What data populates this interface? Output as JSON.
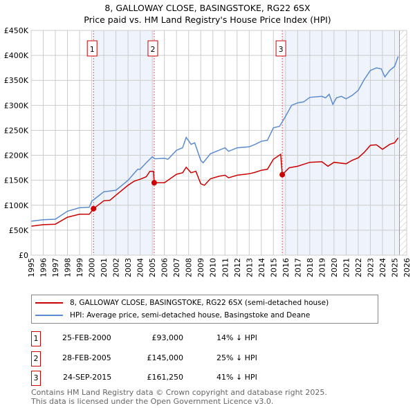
{
  "chart_data": {
    "type": "line",
    "title": "8, GALLOWAY CLOSE, BASINGSTOKE, RG22 6SX",
    "subtitle": "Price paid vs. HM Land Registry's House Price Index (HPI)",
    "xlim": [
      1995,
      2026
    ],
    "ylim": [
      0,
      450000
    ],
    "y_ticks": [
      {
        "v": 0,
        "label": "£0"
      },
      {
        "v": 50000,
        "label": "£50K"
      },
      {
        "v": 100000,
        "label": "£100K"
      },
      {
        "v": 150000,
        "label": "£150K"
      },
      {
        "v": 200000,
        "label": "£200K"
      },
      {
        "v": 250000,
        "label": "£250K"
      },
      {
        "v": 300000,
        "label": "£300K"
      },
      {
        "v": 350000,
        "label": "£350K"
      },
      {
        "v": 400000,
        "label": "£400K"
      },
      {
        "v": 450000,
        "label": "£450K"
      }
    ],
    "x_ticks": [
      "1995",
      "1996",
      "1997",
      "1998",
      "1999",
      "2000",
      "2001",
      "2002",
      "2003",
      "2004",
      "2005",
      "2006",
      "2007",
      "2008",
      "2009",
      "2010",
      "2011",
      "2012",
      "2013",
      "2014",
      "2015",
      "2016",
      "2017",
      "2018",
      "2019",
      "2020",
      "2021",
      "2022",
      "2023",
      "2024",
      "2025",
      "2026"
    ],
    "grid": true,
    "forecast_start": 2025.4,
    "series": [
      {
        "name": "8, GALLOWAY CLOSE, BASINGSTOKE, RG22 6SX (semi-detached house)",
        "color": "#cc0000",
        "x": [
          1995,
          1996,
          1997,
          1998,
          1999,
          1999.8,
          2000.15,
          2001,
          2001.5,
          2002,
          2003,
          2003.5,
          2004,
          2004.5,
          2004.8,
          2005.1,
          2005.16,
          2006,
          2007,
          2007.5,
          2007.8,
          2008.2,
          2008.6,
          2009,
          2009.3,
          2009.8,
          2010.5,
          2011,
          2011.3,
          2012,
          2013,
          2013.5,
          2014,
          2014.5,
          2015,
          2015.6,
          2015.73,
          2016.3,
          2017,
          2018,
          2019,
          2019.5,
          2020,
          2021,
          2021.5,
          2022,
          2022.5,
          2023,
          2023.5,
          2024,
          2024.6,
          2025,
          2025.3
        ],
        "y": [
          58000,
          61000,
          62000,
          76000,
          82000,
          82000,
          93000,
          109000,
          110000,
          120000,
          140000,
          148000,
          152000,
          157000,
          168000,
          168000,
          145000,
          145000,
          162000,
          165000,
          176000,
          165000,
          168000,
          143000,
          140000,
          153000,
          158000,
          160000,
          155000,
          160000,
          163000,
          166000,
          170000,
          172000,
          192000,
          202000,
          161250,
          175000,
          178000,
          186000,
          187000,
          178000,
          186000,
          183000,
          190000,
          195000,
          206000,
          220000,
          221000,
          212000,
          222000,
          225000,
          235000
        ]
      },
      {
        "name": "HPI: Average price, semi-detached house, Basingstoke and Deane",
        "color": "#5b8bd0",
        "x": [
          1995,
          1996,
          1997,
          1998,
          1999,
          1999.8,
          2000,
          2001,
          2002,
          2002.5,
          2003,
          2003.8,
          2004,
          2004.5,
          2005,
          2005.2,
          2006,
          2006.3,
          2007,
          2007.5,
          2007.8,
          2008.2,
          2008.5,
          2009,
          2009.2,
          2009.8,
          2010.5,
          2011,
          2011.3,
          2012,
          2013,
          2013.5,
          2014,
          2014.5,
          2015,
          2015.5,
          2016,
          2016.5,
          2017,
          2017.5,
          2018,
          2019,
          2019.3,
          2019.6,
          2019.9,
          2020.2,
          2020.6,
          2021,
          2021.5,
          2022,
          2022.5,
          2023,
          2023.5,
          2023.9,
          2024.2,
          2024.6,
          2025,
          2025.3
        ],
        "y": [
          68000,
          71000,
          72000,
          88000,
          95000,
          96000,
          108000,
          127000,
          130000,
          140000,
          150000,
          172000,
          172000,
          185000,
          197000,
          193000,
          194000,
          192000,
          210000,
          215000,
          236000,
          222000,
          225000,
          190000,
          185000,
          203000,
          210000,
          215000,
          208000,
          215000,
          217000,
          222000,
          228000,
          230000,
          255000,
          258000,
          278000,
          300000,
          305000,
          307000,
          316000,
          318000,
          315000,
          322000,
          302000,
          315000,
          318000,
          313000,
          320000,
          330000,
          352000,
          370000,
          375000,
          373000,
          357000,
          370000,
          378000,
          398000
        ]
      }
    ],
    "sales": [
      {
        "id": "1",
        "x": 2000.15,
        "price": 93000,
        "date": "25-FEB-2000",
        "price_label": "£93,000",
        "hpi": "14% ↓ HPI"
      },
      {
        "id": "2",
        "x": 2005.16,
        "price": 145000,
        "date": "28-FEB-2005",
        "price_label": "£145,000",
        "hpi": "25% ↓ HPI"
      },
      {
        "id": "3",
        "x": 2015.73,
        "price": 161250,
        "date": "24-SEP-2015",
        "price_label": "£161,250",
        "hpi": "41% ↓ HPI"
      }
    ]
  },
  "footer": {
    "line1": "Contains HM Land Registry data © Crown copyright and database right 2025.",
    "line2": "This data is licensed under the Open Government Licence v3.0."
  }
}
